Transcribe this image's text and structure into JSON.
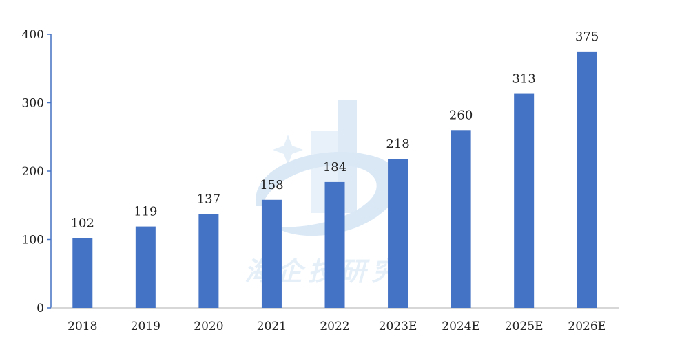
{
  "chart_data": {
    "type": "bar",
    "categories": [
      "2018",
      "2019",
      "2020",
      "2021",
      "2022",
      "2023E",
      "2024E",
      "2025E",
      "2026E"
    ],
    "values": [
      102,
      119,
      137,
      158,
      184,
      218,
      260,
      313,
      375
    ],
    "data_labels": [
      "102",
      "119",
      "137",
      "158",
      "184",
      "218",
      "260",
      "313",
      "375"
    ],
    "ylim": [
      0,
      400
    ],
    "yticks": [
      0,
      100,
      200,
      300,
      400
    ],
    "ytick_labels": [
      "0",
      "100",
      "200",
      "300",
      "400"
    ],
    "title": "",
    "xlabel": "",
    "ylabel": "",
    "grid": false,
    "bar_color": "#4472c4",
    "axis_color": "#4472c4"
  },
  "watermark": {
    "text": "海企技研究",
    "color": "#cfe3f4"
  }
}
